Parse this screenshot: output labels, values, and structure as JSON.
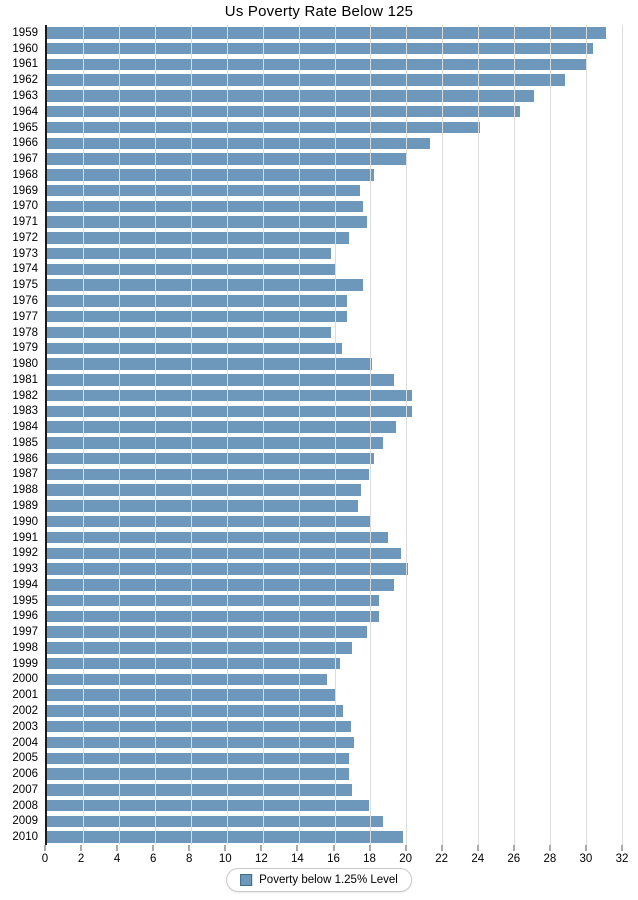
{
  "title": "Us Poverty Rate Below 125",
  "legend": {
    "label": "Poverty below 1.25% Level"
  },
  "colors": {
    "bar": "#6d98bb",
    "legend_swatch_border": "#3f6785",
    "gridline": "#dcdcdc",
    "axis_line": "#1a1a1a",
    "tick": "#555555",
    "text": "#000000"
  },
  "chart_data": {
    "type": "bar",
    "orientation": "horizontal",
    "title": "Us Poverty Rate Below 125",
    "xlabel": "",
    "ylabel": "",
    "xlim": [
      0,
      32
    ],
    "x_ticks": [
      0,
      2,
      4,
      6,
      8,
      10,
      12,
      14,
      16,
      18,
      20,
      22,
      24,
      26,
      28,
      30,
      32
    ],
    "grid": "vertical-only",
    "legend_position": "bottom-center",
    "categories": [
      "1959",
      "1960",
      "1961",
      "1962",
      "1963",
      "1964",
      "1965",
      "1966",
      "1967",
      "1968",
      "1969",
      "1970",
      "1971",
      "1972",
      "1973",
      "1974",
      "1975",
      "1976",
      "1977",
      "1978",
      "1979",
      "1980",
      "1981",
      "1982",
      "1983",
      "1984",
      "1985",
      "1986",
      "1987",
      "1988",
      "1989",
      "1990",
      "1991",
      "1992",
      "1993",
      "1994",
      "1995",
      "1996",
      "1997",
      "1998",
      "1999",
      "2000",
      "2001",
      "2002",
      "2003",
      "2004",
      "2005",
      "2006",
      "2007",
      "2008",
      "2009",
      "2010"
    ],
    "series": [
      {
        "name": "Poverty below 1.25% Level",
        "values": [
          31.1,
          30.4,
          30.0,
          28.8,
          27.1,
          26.3,
          24.1,
          21.3,
          20.0,
          18.2,
          17.4,
          17.6,
          17.8,
          16.8,
          15.8,
          16.0,
          17.6,
          16.7,
          16.7,
          15.8,
          16.4,
          18.1,
          19.3,
          20.3,
          20.3,
          19.4,
          18.7,
          18.2,
          17.9,
          17.5,
          17.3,
          18.0,
          19.0,
          19.7,
          20.1,
          19.3,
          18.5,
          18.5,
          17.8,
          17.0,
          16.3,
          15.6,
          16.1,
          16.5,
          16.9,
          17.1,
          16.8,
          16.8,
          17.0,
          17.9,
          18.7,
          19.8
        ]
      }
    ]
  }
}
